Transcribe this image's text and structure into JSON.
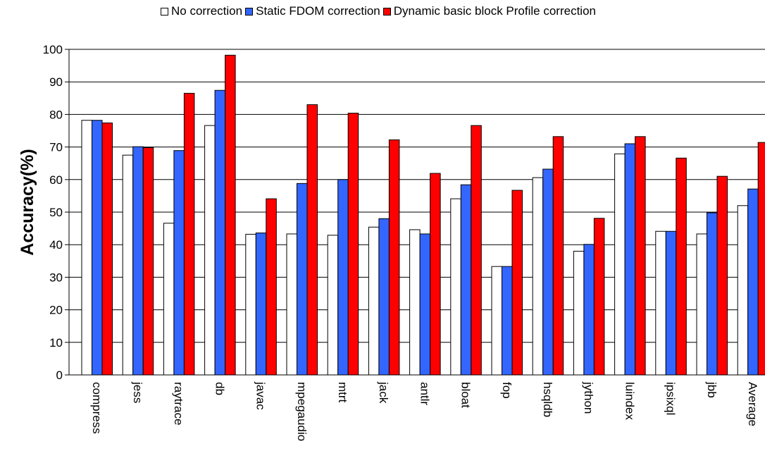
{
  "chart_data": {
    "type": "bar",
    "title": "",
    "xlabel": "",
    "ylabel": "Accuracy(%)",
    "ylim": [
      0,
      100
    ],
    "yticks": [
      0,
      10,
      20,
      30,
      40,
      50,
      60,
      70,
      80,
      90,
      100
    ],
    "grid": true,
    "legend_position": "top",
    "categories": [
      "compress",
      "jess",
      "raytrace",
      "db",
      "javac",
      "mpegaudio",
      "mtrt",
      "jack",
      "antlr",
      "bloat",
      "fop",
      "hsqldb",
      "jython",
      "luindex",
      "ipsixql",
      "jbb",
      "Average"
    ],
    "series": [
      {
        "name": "No correction",
        "color": "#ffffff",
        "values": [
          78.2,
          67.5,
          46.6,
          76.6,
          43.2,
          43.3,
          42.9,
          45.4,
          44.6,
          54.1,
          33.3,
          60.6,
          38.0,
          67.9,
          44.1,
          43.3,
          52.0
        ]
      },
      {
        "name": "Static FDOM correction",
        "color": "#3366ff",
        "values": [
          78.2,
          70.1,
          68.9,
          87.4,
          43.6,
          58.8,
          60.0,
          48.0,
          43.3,
          58.4,
          33.3,
          63.2,
          40.1,
          71.0,
          44.1,
          49.8,
          57.1
        ]
      },
      {
        "name": "Dynamic basic block Profile correction",
        "color": "#ff0000",
        "values": [
          77.4,
          69.8,
          86.5,
          98.2,
          54.1,
          83.0,
          80.4,
          72.2,
          61.9,
          76.6,
          56.7,
          73.2,
          48.1,
          73.2,
          66.6,
          61.0,
          71.4
        ]
      }
    ]
  }
}
